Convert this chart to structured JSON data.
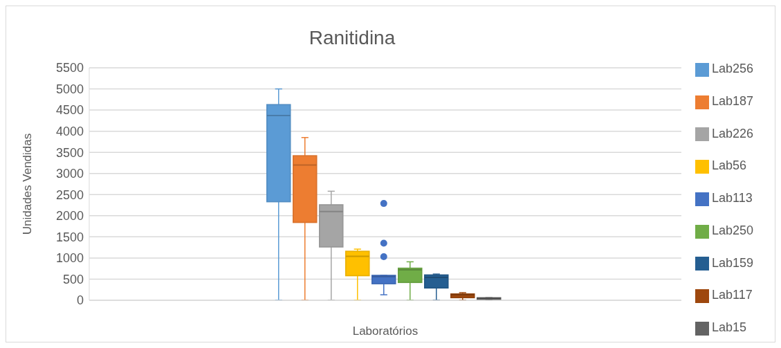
{
  "chart_data": {
    "type": "box",
    "title": "Ranitidina",
    "xlabel": "Laboratórios",
    "ylabel": "Unidades Vendidas",
    "categories": [
      null
    ],
    "ylim": [
      0,
      5500
    ],
    "yticks": [
      0,
      500,
      1000,
      1500,
      2000,
      2500,
      3000,
      3500,
      4000,
      4500,
      5000,
      5500
    ],
    "grid": "y",
    "legend": "right",
    "series": [
      {
        "name": "Lab256",
        "color": "#5b9bd5",
        "boxes": [
          {
            "low": 0,
            "q1": 2330,
            "median": 4370,
            "q3": 4630,
            "high": 5000
          }
        ]
      },
      {
        "name": "Lab187",
        "color": "#ed7d31",
        "boxes": [
          {
            "low": 0,
            "q1": 1840,
            "median": 3200,
            "q3": 3420,
            "high": 3850
          }
        ]
      },
      {
        "name": "Lab226",
        "color": "#a5a5a5",
        "boxes": [
          {
            "low": 0,
            "q1": 1260,
            "median": 2100,
            "q3": 2260,
            "high": 2580
          }
        ]
      },
      {
        "name": "Lab56",
        "color": "#ffc000",
        "boxes": [
          {
            "low": 0,
            "q1": 580,
            "median": 1040,
            "q3": 1160,
            "high": 1210
          }
        ]
      },
      {
        "name": "Lab113",
        "color": "#4472c4",
        "boxes": [
          {
            "low": 130,
            "q1": 390,
            "median": 560,
            "q3": 590,
            "high": 590,
            "outliers": [
              1030,
              1350,
              2290
            ]
          }
        ]
      },
      {
        "name": "Lab250",
        "color": "#70ad47",
        "boxes": [
          {
            "low": 0,
            "q1": 420,
            "median": 720,
            "q3": 760,
            "high": 910
          }
        ]
      },
      {
        "name": "Lab159",
        "color": "#255e91",
        "boxes": [
          {
            "low": 0,
            "q1": 290,
            "median": 540,
            "q3": 600,
            "high": 620
          }
        ]
      },
      {
        "name": "Lab117",
        "color": "#9e480e",
        "boxes": [
          {
            "low": 0,
            "q1": 60,
            "median": 130,
            "q3": 150,
            "high": 180
          }
        ]
      },
      {
        "name": "Lab15",
        "color": "#636363",
        "boxes": [
          {
            "low": 0,
            "q1": 20,
            "median": 40,
            "q3": 60,
            "high": 60
          }
        ]
      }
    ]
  }
}
